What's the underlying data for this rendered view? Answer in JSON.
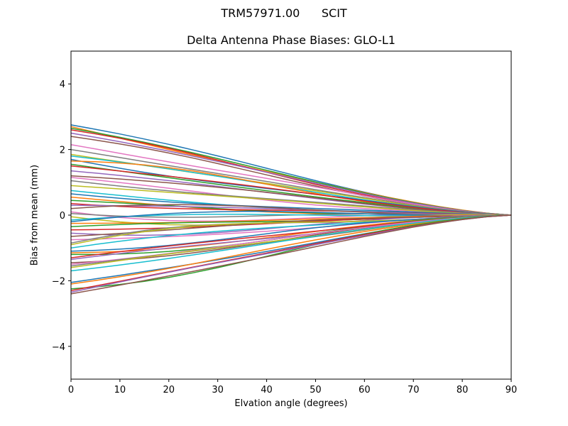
{
  "figure": {
    "suptitle": "TRM57971.00      SCIT",
    "title": "Delta Antenna Phase Biases: GLO-L1",
    "xlabel": "Elvation angle (degrees)",
    "ylabel": "Bias from mean (mm)"
  },
  "chart_data": {
    "type": "line",
    "title": "Delta Antenna Phase Biases: GLO-L1",
    "suptitle": "TRM57971.00      SCIT",
    "xlabel": "Elvation angle (degrees)",
    "ylabel": "Bias from mean (mm)",
    "xlim": [
      0,
      90
    ],
    "ylim": [
      -5,
      5
    ],
    "xticks": [
      0,
      10,
      20,
      30,
      40,
      50,
      60,
      70,
      80,
      90
    ],
    "yticks": [
      -4,
      -2,
      0,
      2,
      4
    ],
    "grid": false,
    "legend": false,
    "x": [
      0,
      5,
      10,
      15,
      20,
      25,
      30,
      35,
      40,
      45,
      50,
      55,
      60,
      65,
      70,
      75,
      80,
      85,
      90
    ],
    "colors": [
      "#1f77b4",
      "#ff7f0e",
      "#2ca02c",
      "#d62728",
      "#9467bd",
      "#8c564b",
      "#e377c2",
      "#7f7f7f",
      "#bcbd22",
      "#17becf"
    ],
    "series_start_values": [
      2.75,
      2.7,
      2.65,
      2.6,
      2.5,
      2.4,
      2.15,
      2.0,
      1.85,
      1.8,
      1.7,
      1.65,
      1.55,
      1.5,
      1.35,
      1.2,
      1.15,
      1.05,
      0.9,
      0.75,
      0.65,
      0.55,
      0.45,
      0.35,
      0.3,
      0.2,
      0.1,
      0.05,
      -0.05,
      -0.15,
      -0.2,
      -0.25,
      -0.35,
      -0.45,
      -0.55,
      -0.65,
      -0.75,
      -0.85,
      -0.9,
      -1.0,
      -1.1,
      -1.15,
      -1.2,
      -1.3,
      -1.35,
      -1.45,
      -1.5,
      -1.55,
      -1.6,
      -1.7,
      -2.05,
      -2.1,
      -2.25,
      -2.3,
      -2.35,
      -2.4
    ],
    "series_note": "56 series (one per satellite/frequency channel), each converging to 0 at 90 degrees; curves decay roughly monotonically with elevation, values at 0 deg listed in series_start_values"
  }
}
